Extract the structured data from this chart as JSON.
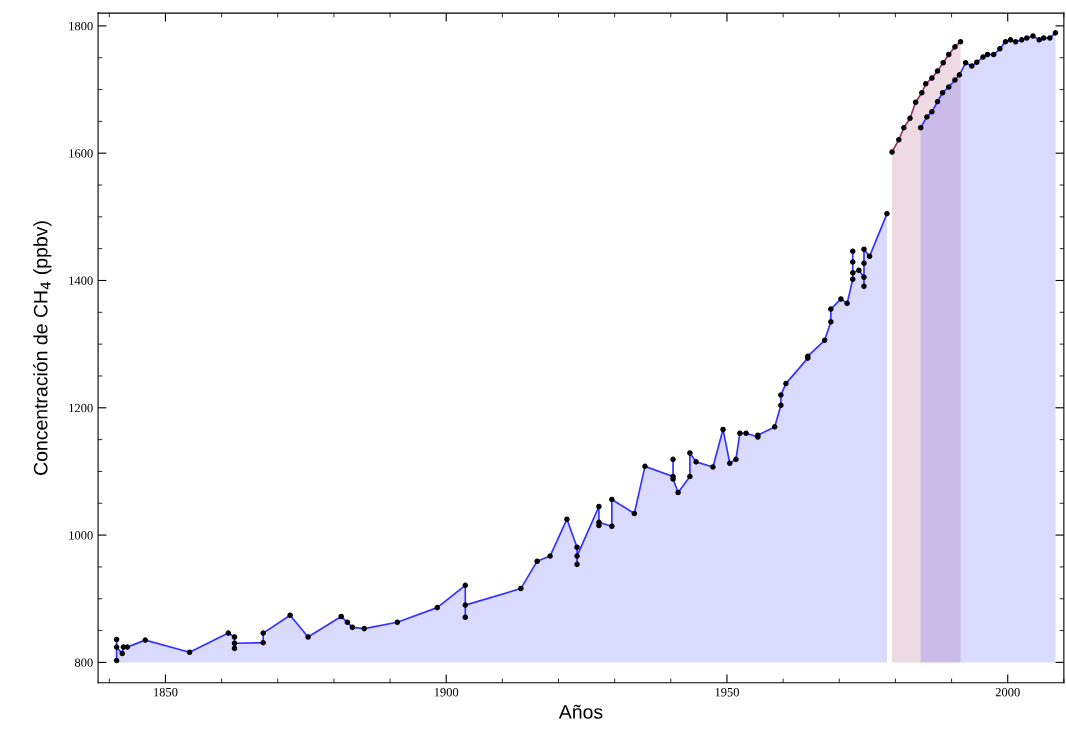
{
  "chart_data": {
    "type": "area",
    "xlabel": "Años",
    "ylabel": "Concentración de CH$_{4}$ (ppbv)",
    "xlim": [
      1838,
      2010
    ],
    "ylim": [
      768,
      1820
    ],
    "xticks": [
      1850,
      1900,
      1950,
      2000
    ],
    "yticks": [
      800,
      1000,
      1200,
      1400,
      1600,
      1800
    ],
    "grid": false,
    "marker": "circle",
    "line_style": "solid",
    "series": [
      {
        "color": "#3333ff",
        "x": [
          1841.3,
          1841.3,
          1841.3,
          1842.3,
          1842.5,
          1843.2,
          1846.4,
          1854.3,
          1861.2,
          1862.3,
          1862.3,
          1862.3,
          1867.4,
          1867.4,
          1872.2,
          1875.4,
          1881.3,
          1882.4,
          1883.3,
          1885.4,
          1891.3,
          1898.4,
          1903.4,
          1903.4,
          1903.4,
          1913.3,
          1916.2,
          1918.5,
          1921.5,
          1923.3,
          1923.3,
          1923.3,
          1927.2,
          1927.2,
          1927.2,
          1929.5,
          1929.5,
          1933.5,
          1935.4,
          1940.4,
          1940.4,
          1940.4,
          1941.3,
          1943.4,
          1943.4,
          1944.5,
          1947.5,
          1949.3,
          1950.5,
          1951.6,
          1952.3,
          1953.4,
          1955.5,
          1955.5,
          1958.5,
          1959.6,
          1959.6,
          1960.5,
          1964.4,
          1964.4,
          1967.4,
          1968.5,
          1968.5,
          1970.3,
          1971.4,
          1972.4,
          1972.4,
          1972.4,
          1972.4,
          1973.5,
          1974.4,
          1974.4,
          1974.4,
          1974.4,
          1975.4,
          1978.5
        ],
        "values": [
          803,
          836,
          824,
          814,
          824,
          824,
          835,
          816,
          846,
          840,
          822,
          830,
          831,
          846,
          874,
          840,
          872,
          863,
          855,
          853,
          863,
          886,
          921,
          871,
          890,
          916,
          959,
          967,
          1025,
          981,
          954,
          967,
          1045,
          1015,
          1020,
          1014,
          1056,
          1034,
          1108,
          1092,
          1119,
          1088,
          1067,
          1092,
          1129,
          1115,
          1107,
          1166,
          1113,
          1119,
          1160,
          1160,
          1154,
          1157,
          1170,
          1204,
          1220,
          1238,
          1278,
          1281,
          1306,
          1335,
          1355,
          1371,
          1364,
          1402,
          1446,
          1429,
          1412,
          1416,
          1405,
          1391,
          1427,
          1449,
          1438,
          1505
        ]
      },
      {
        "color": "#993366",
        "x": [
          1979.4,
          1980.6,
          1981.5,
          1982.6,
          1983.6,
          1984.7,
          1985.4,
          1986.5,
          1987.5,
          1988.5,
          1989.5,
          1990.6,
          1991.6
        ],
        "values": [
          1602,
          1621,
          1640,
          1655,
          1680,
          1695,
          1709,
          1718,
          1729,
          1742,
          1755,
          1767,
          1775
        ]
      },
      {
        "color": "#3333ff",
        "x": [
          1984.5,
          1985.6,
          1986.5,
          1987.5,
          1988.4,
          1989.5,
          1990.6,
          1991.4,
          1992.5,
          1993.6,
          1994.5,
          1995.6,
          1996.4,
          1997.5,
          1998.6,
          1999.6,
          2000.5,
          2001.4,
          2002.5,
          2003.4,
          2004.5,
          2005.6,
          2006.4,
          2007.5,
          2008.5
        ],
        "values": [
          1640,
          1657,
          1665,
          1681,
          1695,
          1704,
          1715,
          1723,
          1742,
          1737,
          1743,
          1751,
          1755,
          1755,
          1764,
          1775,
          1778,
          1775,
          1778,
          1781,
          1784,
          1778,
          1781,
          1781,
          1789
        ]
      }
    ]
  }
}
